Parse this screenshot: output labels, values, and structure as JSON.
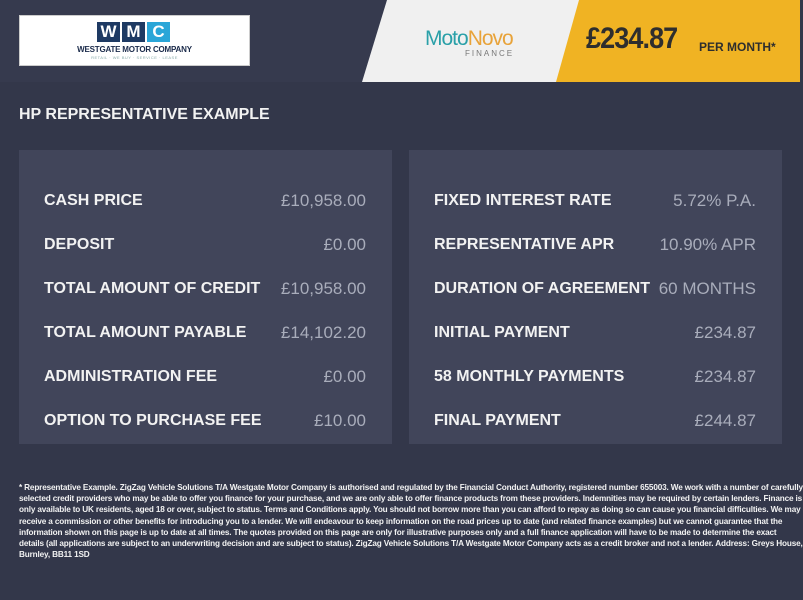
{
  "header": {
    "dealer_logo": {
      "letters": [
        "W",
        "M",
        "C"
      ],
      "letter_colors": [
        "#1e3a63",
        "#1e3a63",
        "#2aa6d8"
      ],
      "name": "WESTGATE MOTOR COMPANY",
      "tagline": "RETAIL · WE BUY · SERVICE · LEASE"
    },
    "finance_logo": {
      "moto": "Moto",
      "novo": "Novo",
      "sub": "FINANCE"
    },
    "monthly_price": "£234.87",
    "per_month": "PER MONTH*"
  },
  "title": "HP REPRESENTATIVE EXAMPLE",
  "left_panel": [
    {
      "label": "CASH PRICE",
      "value": "£10,958.00"
    },
    {
      "label": "DEPOSIT",
      "value": "£0.00"
    },
    {
      "label": "TOTAL AMOUNT OF CREDIT",
      "value": "£10,958.00"
    },
    {
      "label": "TOTAL AMOUNT PAYABLE",
      "value": "£14,102.20"
    },
    {
      "label": "ADMINISTRATION FEE",
      "value": "£0.00"
    },
    {
      "label": "OPTION TO PURCHASE FEE",
      "value": "£10.00"
    }
  ],
  "right_panel": [
    {
      "label": "FIXED INTEREST RATE",
      "value": "5.72% P.A."
    },
    {
      "label": "REPRESENTATIVE APR",
      "value": "10.90% APR"
    },
    {
      "label": "DURATION OF AGREEMENT",
      "value": "60 MONTHS"
    },
    {
      "label": "INITIAL PAYMENT",
      "value": "£234.87"
    },
    {
      "label": "58 MONTHLY PAYMENTS",
      "value": "£234.87"
    },
    {
      "label": "FINAL PAYMENT",
      "value": "£244.87"
    }
  ],
  "footer_lines": [
    "* Representative Example. ZigZag Vehicle Solutions T/A Westgate Motor Company is authorised and regulated by the Financial Conduct Authority, registered number 655003. We work with a number of carefully",
    "selected credit providers who may be able to offer you finance for your purchase, and we are only able to offer finance products from these providers. Indemnities may be required by certain lenders. Finance is",
    "only available to UK residents, aged 18 or over, subject to status. Terms and Conditions apply. You should not borrow more than you can afford to repay as doing so can cause you financial difficulties. We may",
    "receive a commission or other benefits for introducing you to a lender. We will endeavour to keep information on the road prices up to date (and related finance examples) but we cannot guarantee that the",
    "information shown on this page is up to date at all times. The quotes provided on this page are only for illustrative purposes only and a full finance application will have to be made to determine the exact",
    "details (all applications are subject to an underwriting decision and are subject to status). ZigZag Vehicle Solutions T/A Westgate Motor Company acts as a credit broker and not a lender. Address: Greys House,",
    "Burnley, BB11 1SD"
  ]
}
